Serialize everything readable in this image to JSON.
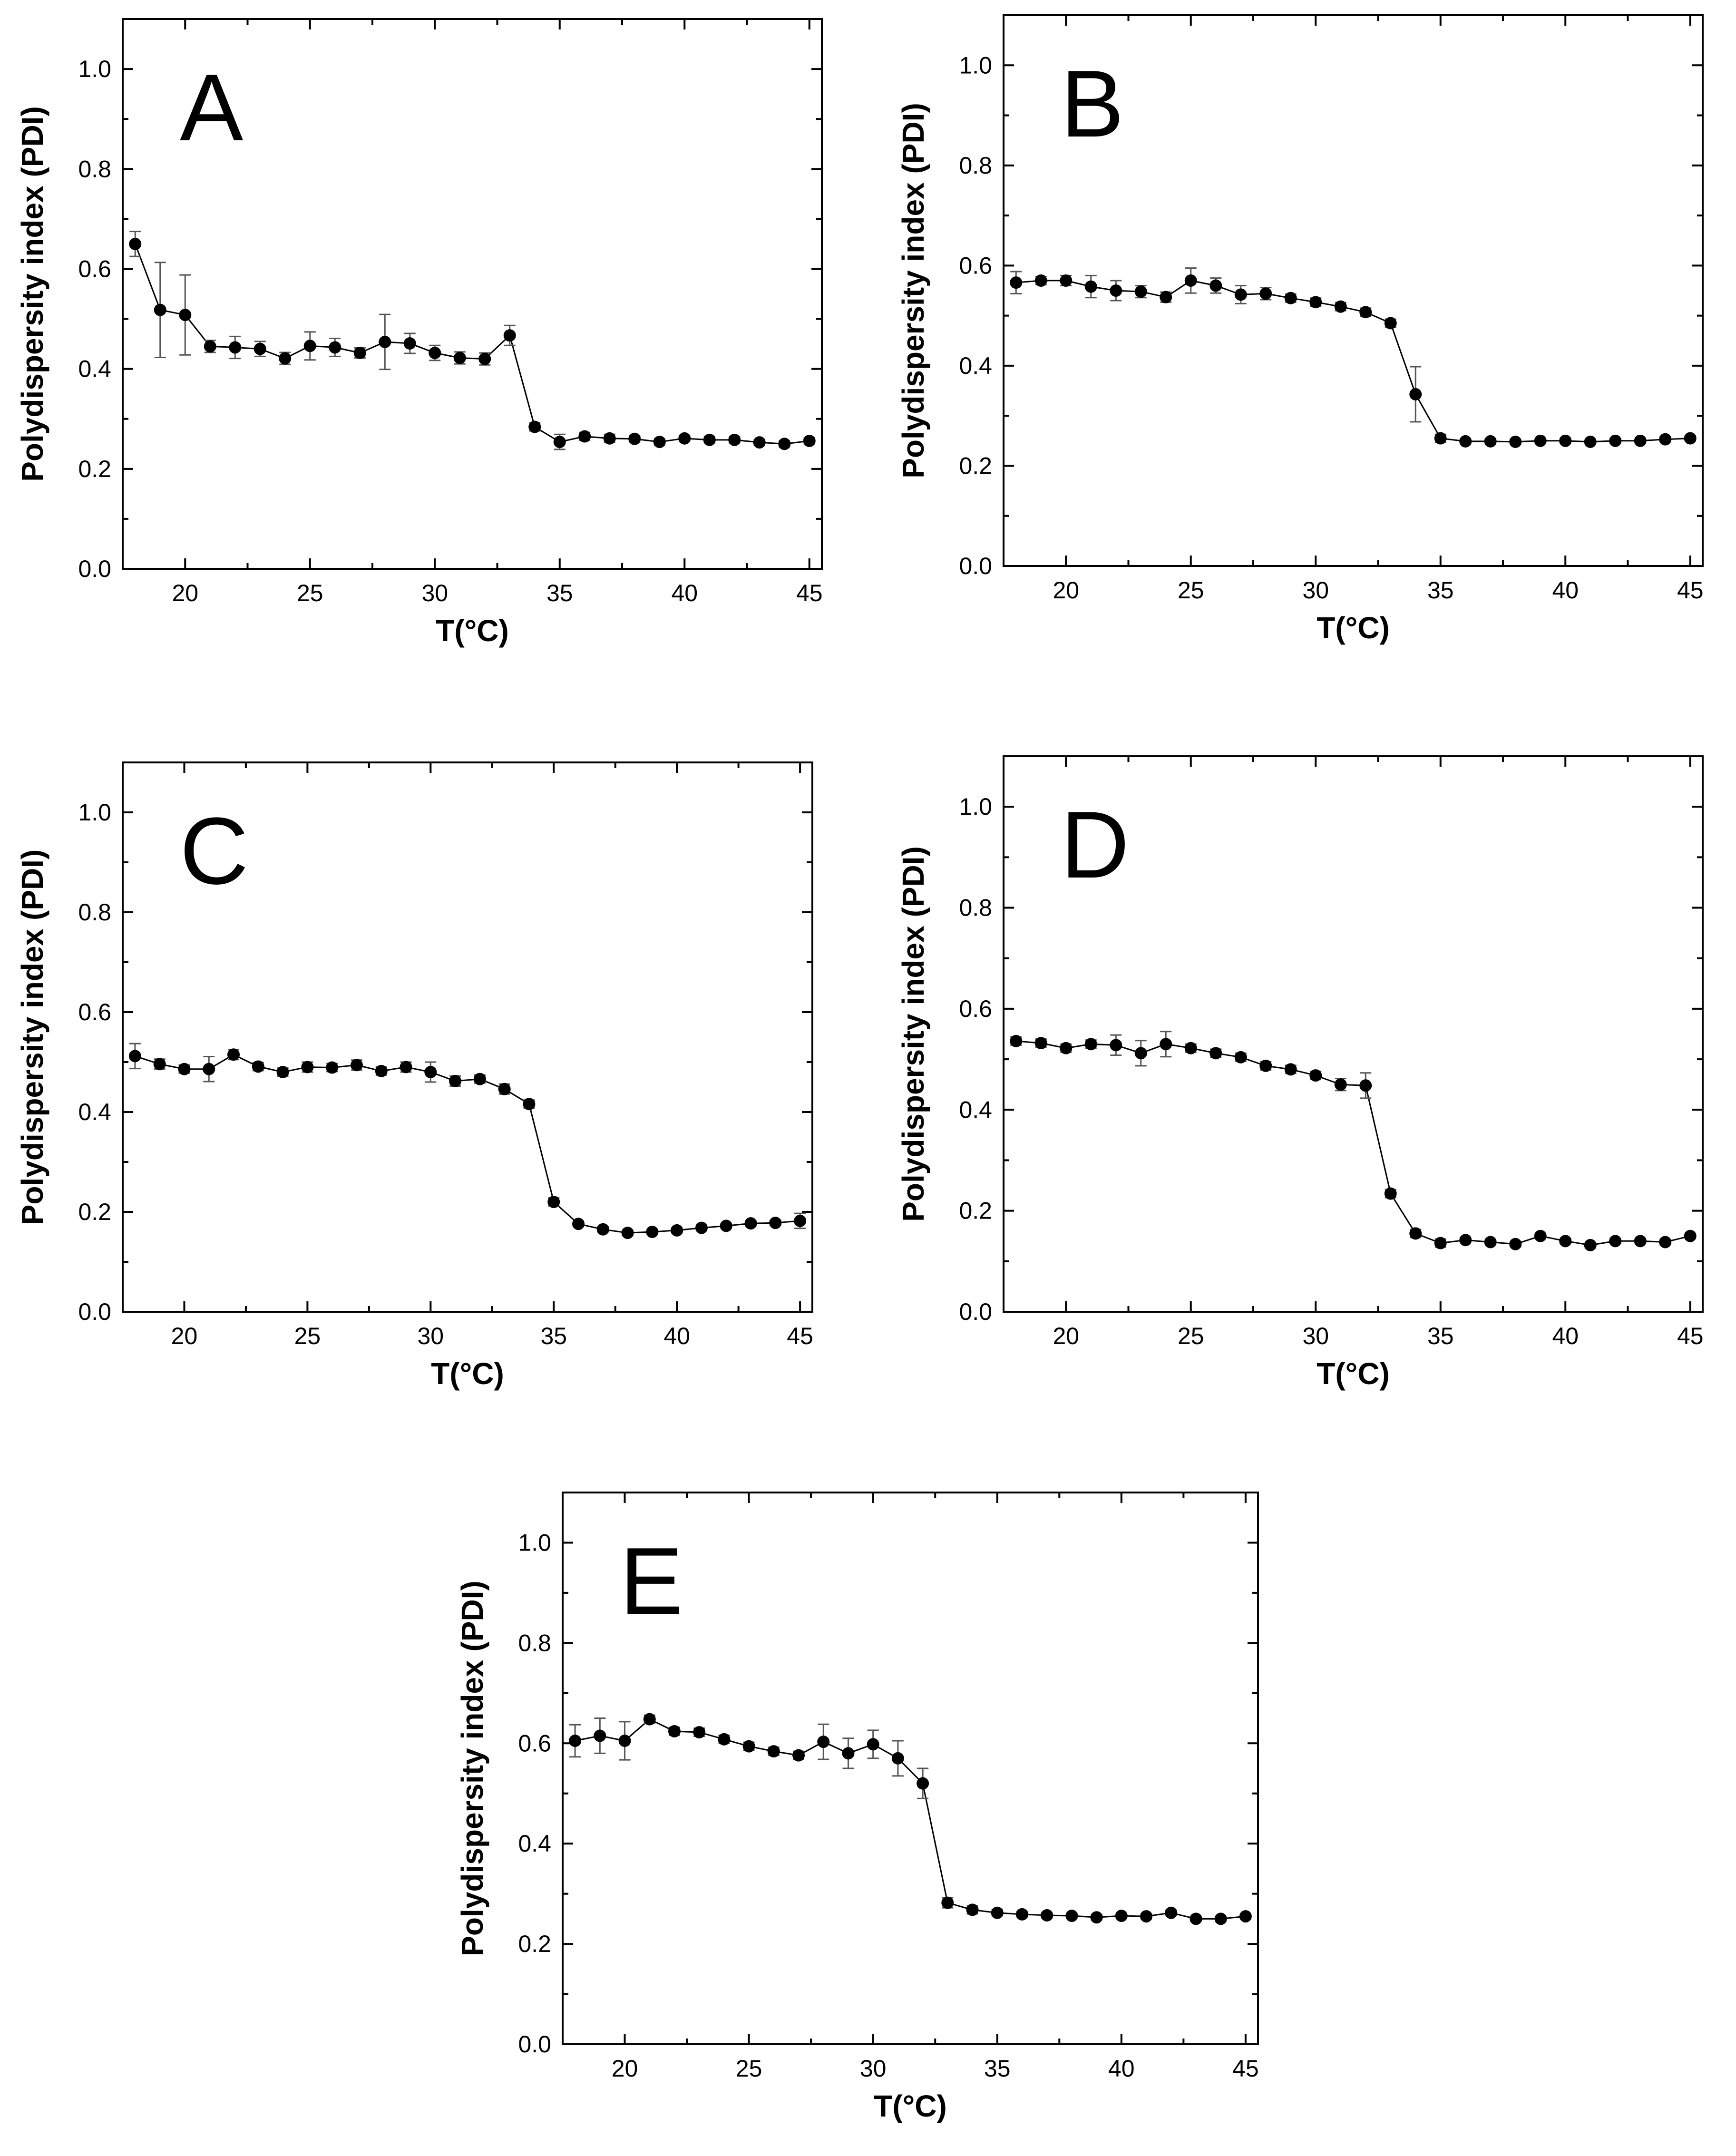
{
  "chart_data": [
    {
      "type": "scatter",
      "panel": "A",
      "xlabel": "T(°C)",
      "ylabel": "Polydispersity index (PDI)",
      "xlim": [
        17.5,
        45.5
      ],
      "ylim": [
        0,
        1.1
      ],
      "xticks": [
        20,
        25,
        30,
        35,
        40,
        45
      ],
      "yticks": [
        0.0,
        0.2,
        0.4,
        0.6,
        0.8,
        1.0
      ],
      "x": [
        18,
        19,
        20,
        21,
        22,
        23,
        24,
        25,
        26,
        27,
        28,
        29,
        30,
        31,
        32,
        33,
        34,
        35,
        36,
        37,
        38,
        39,
        40,
        41,
        42,
        43,
        44,
        45
      ],
      "y": [
        0.65,
        0.518,
        0.508,
        0.445,
        0.443,
        0.44,
        0.421,
        0.446,
        0.443,
        0.432,
        0.454,
        0.451,
        0.432,
        0.422,
        0.42,
        0.467,
        0.284,
        0.254,
        0.265,
        0.261,
        0.26,
        0.254,
        0.261,
        0.258,
        0.258,
        0.253,
        0.25,
        0.256
      ],
      "err": [
        0.025,
        0.095,
        0.08,
        0.012,
        0.022,
        0.015,
        0.012,
        0.028,
        0.018,
        0.01,
        0.055,
        0.02,
        0.015,
        0.012,
        0.012,
        0.02,
        0.008,
        0.015,
        0.008,
        0.008,
        0.006,
        0.006,
        0.006,
        0.006,
        0.006,
        0.006,
        0.006,
        0.006
      ]
    },
    {
      "type": "scatter",
      "panel": "B",
      "xlabel": "T(°C)",
      "ylabel": "Polydispersity index (PDI)",
      "xlim": [
        17.5,
        45.5
      ],
      "ylim": [
        0,
        1.1
      ],
      "xticks": [
        20,
        25,
        30,
        35,
        40,
        45
      ],
      "yticks": [
        0.0,
        0.2,
        0.4,
        0.6,
        0.8,
        1.0
      ],
      "x": [
        18,
        19,
        20,
        21,
        22,
        23,
        24,
        25,
        26,
        27,
        28,
        29,
        30,
        31,
        32,
        33,
        34,
        35,
        36,
        37,
        38,
        39,
        40,
        41,
        42,
        43,
        44,
        45
      ],
      "y": [
        0.566,
        0.57,
        0.57,
        0.558,
        0.55,
        0.548,
        0.537,
        0.57,
        0.56,
        0.542,
        0.544,
        0.535,
        0.527,
        0.518,
        0.507,
        0.485,
        0.343,
        0.255,
        0.249,
        0.249,
        0.248,
        0.25,
        0.25,
        0.248,
        0.25,
        0.25,
        0.253,
        0.255
      ],
      "err": [
        0.022,
        0.008,
        0.01,
        0.022,
        0.02,
        0.012,
        0.01,
        0.025,
        0.015,
        0.018,
        0.012,
        0.008,
        0.008,
        0.008,
        0.008,
        0.008,
        0.055,
        0.008,
        0.005,
        0.005,
        0.005,
        0.005,
        0.005,
        0.005,
        0.005,
        0.005,
        0.005,
        0.005
      ]
    },
    {
      "type": "scatter",
      "panel": "C",
      "xlabel": "T(°C)",
      "ylabel": "Polydispersity index (PDI)",
      "xlim": [
        17.5,
        45.5
      ],
      "ylim": [
        0,
        1.1
      ],
      "xticks": [
        20,
        25,
        30,
        35,
        40,
        45
      ],
      "yticks": [
        0.0,
        0.2,
        0.4,
        0.6,
        0.8,
        1.0
      ],
      "x": [
        18,
        19,
        20,
        21,
        22,
        23,
        24,
        25,
        26,
        27,
        28,
        29,
        30,
        31,
        32,
        33,
        34,
        35,
        36,
        37,
        38,
        39,
        40,
        41,
        42,
        43,
        44,
        45
      ],
      "y": [
        0.512,
        0.496,
        0.486,
        0.486,
        0.515,
        0.491,
        0.48,
        0.49,
        0.489,
        0.494,
        0.482,
        0.49,
        0.48,
        0.462,
        0.466,
        0.446,
        0.416,
        0.22,
        0.176,
        0.165,
        0.158,
        0.16,
        0.163,
        0.168,
        0.172,
        0.177,
        0.178,
        0.182
      ],
      "err": [
        0.025,
        0.01,
        0.008,
        0.025,
        0.01,
        0.008,
        0.008,
        0.01,
        0.008,
        0.01,
        0.008,
        0.01,
        0.02,
        0.01,
        0.008,
        0.01,
        0.008,
        0.008,
        0.005,
        0.005,
        0.005,
        0.005,
        0.005,
        0.005,
        0.005,
        0.005,
        0.005,
        0.015
      ]
    },
    {
      "type": "scatter",
      "panel": "D",
      "xlabel": "T(°C)",
      "ylabel": "Polydispersity index (PDI)",
      "xlim": [
        17.5,
        45.5
      ],
      "ylim": [
        0,
        1.1
      ],
      "xticks": [
        20,
        25,
        30,
        35,
        40,
        45
      ],
      "yticks": [
        0.0,
        0.2,
        0.4,
        0.6,
        0.8,
        1.0
      ],
      "x": [
        18,
        19,
        20,
        21,
        22,
        23,
        24,
        25,
        26,
        27,
        28,
        29,
        30,
        31,
        32,
        33,
        34,
        35,
        36,
        37,
        38,
        39,
        40,
        41,
        42,
        43,
        44,
        45
      ],
      "y": [
        0.536,
        0.532,
        0.522,
        0.53,
        0.528,
        0.512,
        0.53,
        0.522,
        0.512,
        0.504,
        0.487,
        0.48,
        0.468,
        0.45,
        0.448,
        0.234,
        0.155,
        0.136,
        0.142,
        0.138,
        0.134,
        0.15,
        0.14,
        0.132,
        0.14,
        0.14,
        0.138,
        0.15
      ],
      "err": [
        0.008,
        0.008,
        0.008,
        0.008,
        0.02,
        0.025,
        0.025,
        0.008,
        0.008,
        0.008,
        0.008,
        0.008,
        0.008,
        0.012,
        0.025,
        0.008,
        0.008,
        0.008,
        0.005,
        0.005,
        0.005,
        0.005,
        0.005,
        0.005,
        0.005,
        0.005,
        0.005,
        0.005
      ]
    },
    {
      "type": "scatter",
      "panel": "E",
      "xlabel": "T(°C)",
      "ylabel": "Polydispersity index (PDI)",
      "xlim": [
        17.5,
        45.5
      ],
      "ylim": [
        0,
        1.1
      ],
      "xticks": [
        20,
        25,
        30,
        35,
        40,
        45
      ],
      "yticks": [
        0.0,
        0.2,
        0.4,
        0.6,
        0.8,
        1.0
      ],
      "x": [
        18,
        19,
        20,
        21,
        22,
        23,
        24,
        25,
        26,
        27,
        28,
        29,
        30,
        31,
        32,
        33,
        34,
        35,
        36,
        37,
        38,
        39,
        40,
        41,
        42,
        43,
        44,
        45
      ],
      "y": [
        0.605,
        0.615,
        0.605,
        0.648,
        0.624,
        0.622,
        0.608,
        0.594,
        0.584,
        0.576,
        0.603,
        0.58,
        0.598,
        0.57,
        0.52,
        0.282,
        0.268,
        0.262,
        0.259,
        0.257,
        0.256,
        0.253,
        0.256,
        0.255,
        0.262,
        0.25,
        0.25,
        0.255
      ],
      "err": [
        0.032,
        0.035,
        0.038,
        0.008,
        0.008,
        0.008,
        0.008,
        0.008,
        0.008,
        0.008,
        0.035,
        0.03,
        0.028,
        0.035,
        0.03,
        0.01,
        0.008,
        0.006,
        0.005,
        0.005,
        0.005,
        0.005,
        0.005,
        0.005,
        0.005,
        0.005,
        0.005,
        0.005
      ]
    }
  ]
}
